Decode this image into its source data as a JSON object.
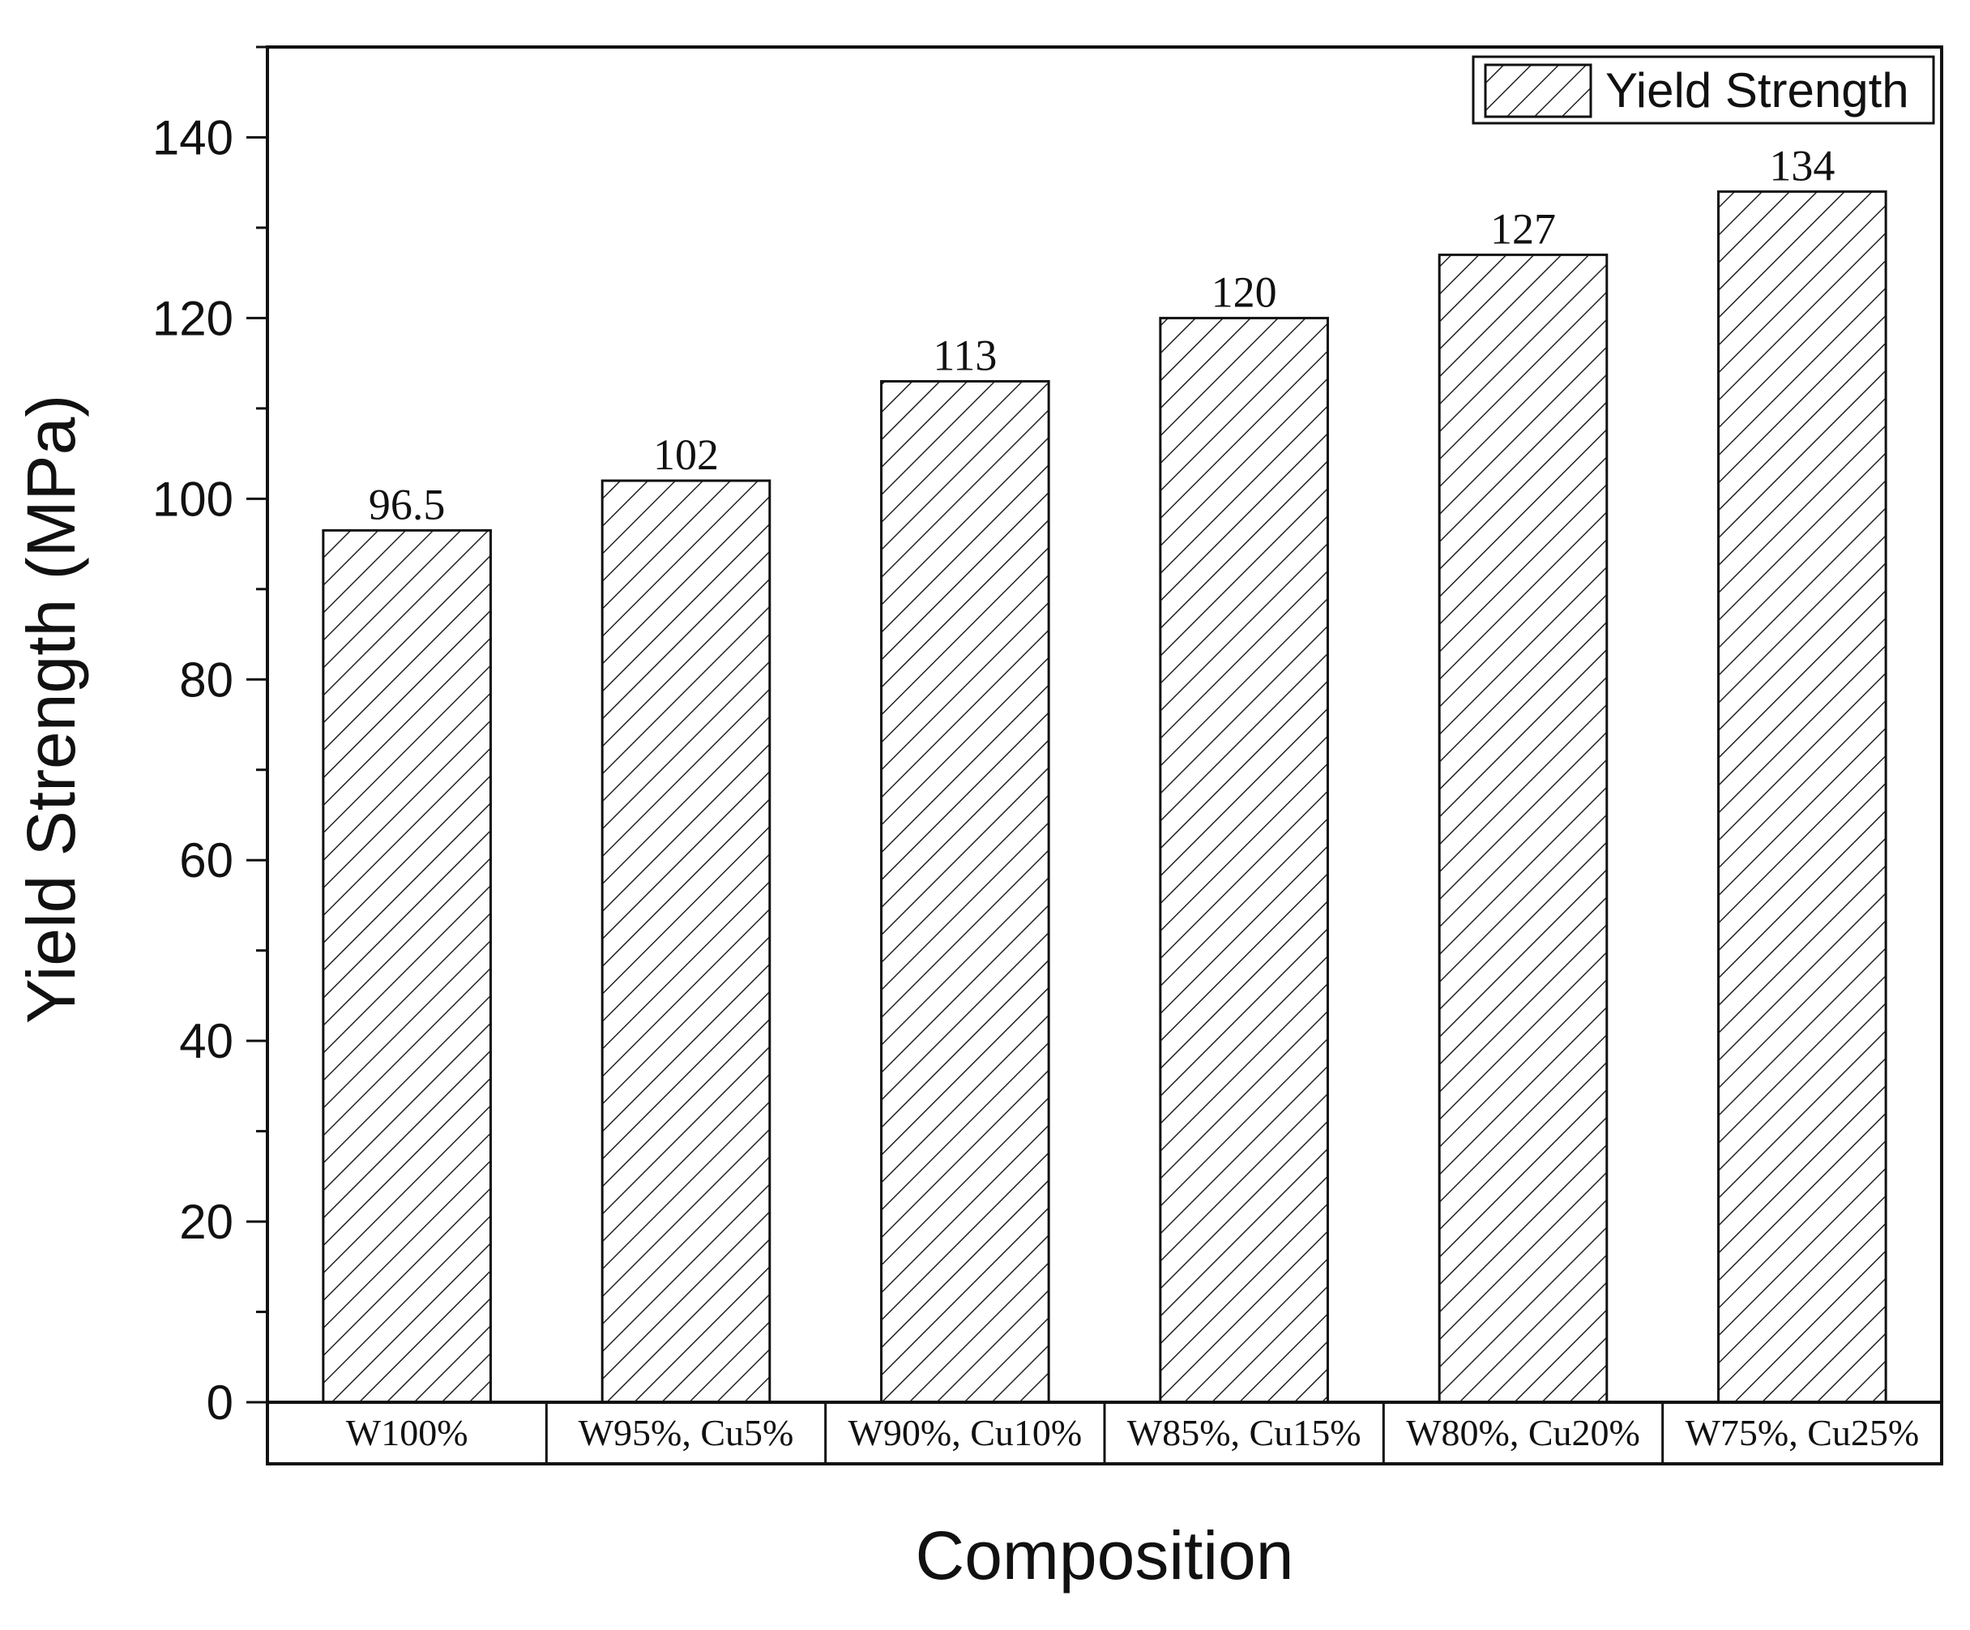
{
  "chart_data": {
    "type": "bar",
    "categories": [
      "W100%",
      "W95%, Cu5%",
      "W90%, Cu10%",
      "W85%, Cu15%",
      "W80%, Cu20%",
      "W75%, Cu25%"
    ],
    "series": [
      {
        "name": "Yield Strength",
        "values": [
          96.5,
          102,
          113,
          120,
          127,
          134
        ]
      }
    ],
    "data_labels": [
      "96.5",
      "102",
      "113",
      "120",
      "127",
      "134"
    ],
    "title": "",
    "xlabel": "Composition",
    "ylabel": "Yield Strength (MPa)",
    "ylim": [
      0,
      150
    ],
    "yticks": [
      0,
      20,
      40,
      60,
      80,
      100,
      120,
      140
    ],
    "grid": false,
    "legend_position": "top-right",
    "bar_fill": "hatched",
    "colors": {
      "stroke": "#111111",
      "background": "#ffffff"
    }
  }
}
